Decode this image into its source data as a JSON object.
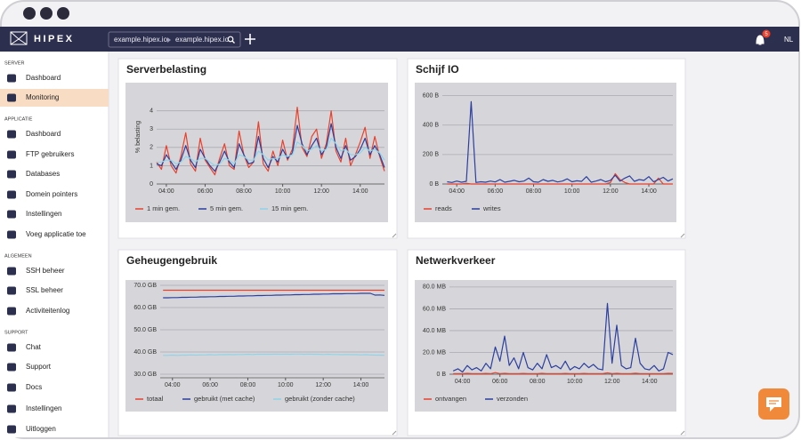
{
  "header": {
    "logo": "HIPEX",
    "crumbs": [
      "example.hipex.io",
      "example.hipex.io"
    ],
    "badge": "5",
    "language": "NL"
  },
  "sidebar": [
    {
      "section": "SERVER",
      "items": [
        "Dashboard",
        "Monitoring"
      ]
    },
    {
      "section": "APPLICATIE",
      "items": [
        "Dashboard",
        "FTP gebruikers",
        "Databases",
        "Domein pointers",
        "Instellingen",
        "Voeg applicatie toe"
      ]
    },
    {
      "section": "ALGEMEEN",
      "items": [
        "SSH beheer",
        "SSL beheer",
        "Activiteitenlog"
      ]
    },
    {
      "section": "SUPPORT",
      "items": [
        "Chat",
        "Support",
        "Docs",
        "Instellingen",
        "Uitloggen"
      ]
    }
  ],
  "chart_data": [
    {
      "type": "line",
      "title": "Serverbelasting",
      "y_label": "% belasting",
      "x": [
        3.5,
        3.75,
        4,
        4.25,
        4.5,
        4.75,
        5,
        5.25,
        5.5,
        5.75,
        6,
        6.25,
        6.5,
        6.75,
        7,
        7.25,
        7.5,
        7.75,
        8,
        8.25,
        8.5,
        8.75,
        9,
        9.25,
        9.5,
        9.75,
        10,
        10.25,
        10.5,
        10.75,
        11,
        11.25,
        11.5,
        11.75,
        12,
        12.25,
        12.5,
        12.75,
        13,
        13.25,
        13.5,
        13.75,
        14,
        14.25,
        14.5,
        14.75,
        15,
        15.25
      ],
      "xlim": [
        3.5,
        15.25
      ],
      "xticks": [
        {
          "value": 4,
          "label": "04:00"
        },
        {
          "value": 6,
          "label": "06:00"
        },
        {
          "value": 8,
          "label": "08:00"
        },
        {
          "value": 10,
          "label": "10:00"
        },
        {
          "value": 12,
          "label": "12:00"
        },
        {
          "value": 14,
          "label": "14:00"
        }
      ],
      "ylim": [
        0,
        5.15
      ],
      "yticks": [
        0,
        1,
        2,
        3,
        4
      ],
      "grid": true,
      "series": [
        {
          "name": "1 min gem.",
          "color": "#e8412c",
          "values": [
            1.2,
            0.8,
            2.1,
            1.0,
            0.6,
            1.5,
            2.8,
            1.1,
            0.7,
            2.5,
            1.3,
            0.9,
            0.5,
            1.4,
            2.2,
            1.0,
            0.8,
            2.9,
            1.6,
            0.9,
            1.2,
            3.4,
            1.1,
            0.7,
            1.8,
            1.0,
            2.4,
            1.3,
            1.9,
            4.2,
            2.0,
            1.5,
            2.6,
            3.0,
            1.4,
            2.2,
            4.0,
            1.8,
            1.2,
            2.5,
            1.0,
            1.6,
            2.3,
            3.1,
            1.4,
            2.6,
            1.5,
            0.7
          ]
        },
        {
          "name": "5 min gem.",
          "color": "#2c3f9e",
          "values": [
            1.1,
            1.0,
            1.6,
            1.2,
            0.8,
            1.3,
            2.1,
            1.3,
            0.9,
            1.9,
            1.4,
            1.0,
            0.7,
            1.2,
            1.8,
            1.2,
            0.9,
            2.2,
            1.6,
            1.1,
            1.2,
            2.6,
            1.4,
            0.9,
            1.5,
            1.2,
            1.9,
            1.4,
            1.7,
            3.2,
            2.2,
            1.6,
            2.1,
            2.5,
            1.6,
            2.0,
            3.3,
            2.0,
            1.4,
            2.1,
            1.3,
            1.5,
            1.9,
            2.5,
            1.6,
            2.1,
            1.6,
            0.9
          ]
        },
        {
          "name": "15 min gem.",
          "color": "#8fd3e8",
          "values": [
            1.2,
            1.2,
            1.3,
            1.3,
            1.1,
            1.2,
            1.5,
            1.4,
            1.2,
            1.4,
            1.4,
            1.2,
            1.0,
            1.1,
            1.4,
            1.3,
            1.1,
            1.6,
            1.5,
            1.3,
            1.3,
            1.8,
            1.6,
            1.3,
            1.4,
            1.4,
            1.6,
            1.5,
            1.6,
            2.3,
            2.1,
            1.8,
            1.9,
            2.1,
            1.8,
            1.9,
            2.5,
            2.2,
            1.8,
            1.9,
            1.6,
            1.6,
            1.7,
            2.0,
            1.8,
            1.9,
            1.7,
            1.3
          ]
        }
      ]
    },
    {
      "type": "line",
      "title": "Schijf IO",
      "x": [
        3.5,
        3.75,
        4,
        4.25,
        4.5,
        4.75,
        5,
        5.25,
        5.5,
        5.75,
        6,
        6.25,
        6.5,
        6.75,
        7,
        7.25,
        7.5,
        7.75,
        8,
        8.25,
        8.5,
        8.75,
        9,
        9.25,
        9.5,
        9.75,
        10,
        10.25,
        10.5,
        10.75,
        11,
        11.25,
        11.5,
        11.75,
        12,
        12.25,
        12.5,
        12.75,
        13,
        13.25,
        13.5,
        13.75,
        14,
        14.25,
        14.5,
        14.75,
        15,
        15.25
      ],
      "xlim": [
        3.25,
        15.25
      ],
      "xticks": [
        {
          "value": 4,
          "label": "04:00"
        },
        {
          "value": 6,
          "label": "06:00"
        },
        {
          "value": 8,
          "label": "08:00"
        },
        {
          "value": 10,
          "label": "10:00"
        },
        {
          "value": 12,
          "label": "12:00"
        },
        {
          "value": 14,
          "label": "14:00"
        }
      ],
      "ylim": [
        0,
        640
      ],
      "yticks": [
        {
          "value": 0,
          "label": "0 B"
        },
        {
          "value": 200,
          "label": "200 B"
        },
        {
          "value": 400,
          "label": "400 B"
        },
        {
          "value": 600,
          "label": "600 B"
        }
      ],
      "grid": true,
      "series": [
        {
          "name": "reads",
          "color": "#e8412c",
          "values": [
            0,
            0,
            0,
            0,
            5,
            0,
            0,
            0,
            0,
            0,
            0,
            0,
            0,
            0,
            0,
            0,
            0,
            0,
            0,
            0,
            0,
            0,
            0,
            0,
            0,
            0,
            0,
            0,
            0,
            0,
            0,
            0,
            0,
            0,
            10,
            70,
            30,
            10,
            0,
            0,
            0,
            0,
            0,
            0,
            40,
            0,
            0,
            0
          ]
        },
        {
          "name": "writes",
          "color": "#2c3f9e",
          "values": [
            15,
            10,
            20,
            12,
            18,
            560,
            10,
            15,
            12,
            20,
            14,
            30,
            12,
            18,
            25,
            15,
            20,
            40,
            15,
            12,
            30,
            18,
            25,
            14,
            20,
            35,
            15,
            22,
            18,
            50,
            12,
            20,
            30,
            15,
            25,
            60,
            20,
            40,
            55,
            18,
            30,
            25,
            50,
            15,
            30,
            45,
            20,
            35
          ]
        }
      ]
    },
    {
      "type": "line",
      "title": "Geheugengebruik",
      "x": [
        3.5,
        3.75,
        4,
        4.25,
        4.5,
        4.75,
        5,
        5.25,
        5.5,
        5.75,
        6,
        6.25,
        6.5,
        6.75,
        7,
        7.25,
        7.5,
        7.75,
        8,
        8.25,
        8.5,
        8.75,
        9,
        9.25,
        9.5,
        9.75,
        10,
        10.25,
        10.5,
        10.75,
        11,
        11.25,
        11.5,
        11.75,
        12,
        12.25,
        12.5,
        12.75,
        13,
        13.25,
        13.5,
        13.75,
        14,
        14.25,
        14.5,
        14.75,
        15,
        15.25
      ],
      "xlim": [
        3.35,
        15.25
      ],
      "xticks": [
        {
          "value": 4,
          "label": "04:00"
        },
        {
          "value": 6,
          "label": "06:00"
        },
        {
          "value": 8,
          "label": "08:00"
        },
        {
          "value": 10,
          "label": "10:00"
        },
        {
          "value": 12,
          "label": "12:00"
        },
        {
          "value": 14,
          "label": "14:00"
        }
      ],
      "ylim": [
        28.4,
        71.2
      ],
      "yticks": [
        {
          "value": 30,
          "label": "30.0 GB"
        },
        {
          "value": 40,
          "label": "40.0 GB"
        },
        {
          "value": 50,
          "label": "50.0 GB"
        },
        {
          "value": 60,
          "label": "60.0 GB"
        },
        {
          "value": 70,
          "label": "70.0 GB"
        }
      ],
      "grid": true,
      "series": [
        {
          "name": "totaal",
          "color": "#e8412c",
          "values": [
            67.8,
            67.8,
            67.8,
            67.8,
            67.8,
            67.8,
            67.8,
            67.8,
            67.8,
            67.8,
            67.8,
            67.8,
            67.8,
            67.8,
            67.8,
            67.8,
            67.8,
            67.8,
            67.8,
            67.8,
            67.8,
            67.8,
            67.8,
            67.8,
            67.8,
            67.8,
            67.8,
            67.8,
            67.8,
            67.8,
            67.8,
            67.8,
            67.8,
            67.8,
            67.8,
            67.8,
            67.8,
            67.8,
            67.8,
            67.8,
            67.8,
            67.8,
            67.8,
            67.8,
            67.8,
            67.8,
            67.8,
            67.8
          ]
        },
        {
          "name": "gebruikt (met cache)",
          "color": "#2c3f9e",
          "values": [
            64.4,
            64.4,
            64.5,
            64.5,
            64.6,
            64.6,
            64.7,
            64.7,
            64.8,
            64.8,
            64.9,
            64.9,
            65.0,
            65.0,
            65.1,
            65.1,
            65.2,
            65.2,
            65.3,
            65.3,
            65.4,
            65.4,
            65.5,
            65.5,
            65.6,
            65.6,
            65.7,
            65.7,
            65.8,
            65.8,
            65.9,
            65.9,
            66.0,
            66.0,
            66.1,
            66.1,
            66.2,
            66.2,
            66.2,
            66.3,
            66.3,
            66.3,
            66.4,
            66.4,
            66.4,
            65.6,
            65.7,
            65.5
          ]
        },
        {
          "name": "gebruikt (zonder cache)",
          "color": "#8fd3e8",
          "values": [
            38.5,
            38.5,
            38.6,
            38.5,
            38.6,
            38.6,
            38.7,
            38.6,
            38.7,
            38.7,
            38.8,
            38.7,
            38.8,
            38.8,
            38.9,
            38.8,
            38.9,
            38.9,
            39.0,
            38.9,
            39.0,
            39.0,
            39.0,
            39.0,
            39.1,
            39.0,
            39.1,
            39.0,
            39.1,
            39.1,
            39.0,
            39.1,
            39.0,
            39.0,
            38.9,
            39.0,
            38.9,
            38.9,
            38.8,
            38.9,
            38.8,
            38.8,
            38.7,
            38.8,
            38.7,
            38.6,
            38.6,
            38.5
          ]
        }
      ]
    },
    {
      "type": "line",
      "title": "Netwerkverkeer",
      "x": [
        3.5,
        3.75,
        4,
        4.25,
        4.5,
        4.75,
        5,
        5.25,
        5.5,
        5.75,
        6,
        6.25,
        6.5,
        6.75,
        7,
        7.25,
        7.5,
        7.75,
        8,
        8.25,
        8.5,
        8.75,
        9,
        9.25,
        9.5,
        9.75,
        10,
        10.25,
        10.5,
        10.75,
        11,
        11.25,
        11.5,
        11.75,
        12,
        12.25,
        12.5,
        12.75,
        13,
        13.25,
        13.5,
        13.75,
        14,
        14.25,
        14.5,
        14.75,
        15,
        15.25
      ],
      "xlim": [
        3.3,
        15.25
      ],
      "xticks": [
        {
          "value": 4,
          "label": "04:00"
        },
        {
          "value": 6,
          "label": "06:00"
        },
        {
          "value": 8,
          "label": "08:00"
        },
        {
          "value": 10,
          "label": "10:00"
        },
        {
          "value": 12,
          "label": "12:00"
        },
        {
          "value": 14,
          "label": "14:00"
        }
      ],
      "ylim": [
        0,
        84
      ],
      "yticks": [
        {
          "value": 0,
          "label": "0 B"
        },
        {
          "value": 20,
          "label": "20.0 MB"
        },
        {
          "value": 40,
          "label": "40.0 MB"
        },
        {
          "value": 60,
          "label": "60.0 MB"
        },
        {
          "value": 80,
          "label": "80.0 MB"
        }
      ],
      "grid": true,
      "series": [
        {
          "name": "ontvangen",
          "color": "#e8412c",
          "values": [
            0.5,
            0.6,
            0.5,
            0.8,
            0.5,
            0.6,
            0.5,
            0.7,
            0.5,
            1.5,
            0.6,
            0.8,
            0.5,
            0.6,
            0.5,
            0.7,
            0.5,
            0.6,
            0.5,
            0.8,
            0.6,
            0.5,
            0.6,
            0.5,
            0.7,
            0.5,
            0.6,
            0.5,
            0.7,
            0.5,
            0.6,
            0.5,
            0.5,
            1.2,
            0.6,
            0.8,
            0.5,
            0.6,
            0.5,
            0.9,
            0.6,
            0.5,
            0.5,
            0.6,
            0.5,
            0.6,
            0.8,
            0.7
          ]
        },
        {
          "name": "verzonden",
          "color": "#2c3f9e",
          "values": [
            3,
            5,
            2,
            8,
            4,
            6,
            3,
            10,
            5,
            25,
            12,
            35,
            8,
            15,
            5,
            20,
            6,
            4,
            10,
            5,
            18,
            6,
            8,
            5,
            12,
            4,
            7,
            5,
            10,
            6,
            9,
            5,
            4,
            65,
            10,
            45,
            8,
            5,
            6,
            33,
            10,
            5,
            4,
            8,
            3,
            5,
            20,
            18
          ]
        }
      ]
    }
  ]
}
